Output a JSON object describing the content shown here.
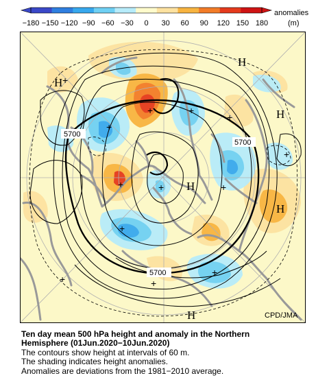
{
  "colorbar": {
    "ticks": [
      "−180",
      "−150",
      "−120",
      "−90",
      "−60",
      "−30",
      "0",
      "30",
      "60",
      "90",
      "120",
      "150",
      "180"
    ],
    "unit_line1": "anomalies",
    "unit_line2": "(m)",
    "colors": [
      "#3a48c8",
      "#2f7fe0",
      "#37a8ee",
      "#6fd0f4",
      "#b7ecfa",
      "#fffbcc",
      "#fde2a0",
      "#f8b440",
      "#f37c27",
      "#e53a1c",
      "#cf1313"
    ]
  },
  "map": {
    "credit": "CPD/JMA",
    "contour_label": "5700",
    "high_marker": "H",
    "low_marker": "+",
    "colors": {
      "background": "#fcf8c8",
      "land": "#999999",
      "grid": "#b0b0b0",
      "contour": "#000000"
    }
  },
  "caption": {
    "line1": "Ten day mean 500 hPa height and anomaly in the Northern",
    "line2": "Hemisphere (01Jun.2020−10Jun.2020)",
    "line3": "The contours show height at intervals of 60 m.",
    "line4": "The shading indicates height anomalies.",
    "line5": "Anomalies are deviations from the 1981−2010 average."
  }
}
